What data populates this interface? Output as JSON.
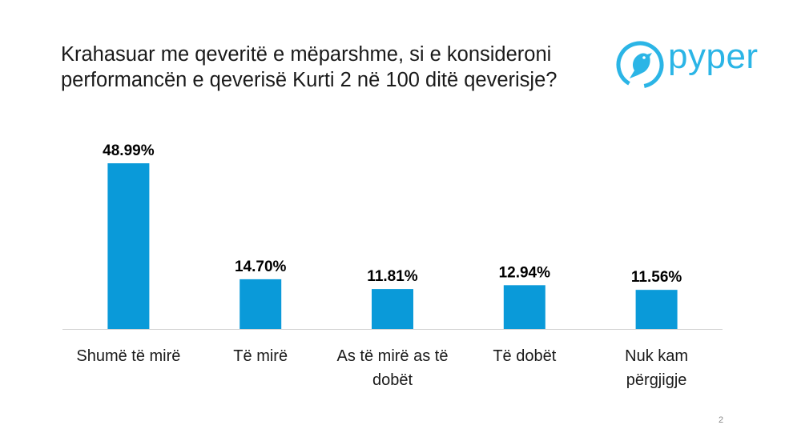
{
  "page": {
    "title_line1": "Krahasuar me qeveritë e mëparshme, si e konsideroni",
    "title_line2": "performancën e qeverisë Kurti 2 në 100 ditë qeverisje?",
    "page_number": "2"
  },
  "logo": {
    "text": "pyper",
    "icon": "bird-logo-icon",
    "color": "#2bb5e6"
  },
  "colors": {
    "bar": "#0a9ad9",
    "axis": "#d0d0d0",
    "label": "#000000"
  },
  "chart_data": {
    "type": "bar",
    "title": "Krahasuar me qeveritë e mëparshme, si e konsideroni performancën e qeverisë Kurti 2 në 100 ditë qeverisje?",
    "categories": [
      [
        "Shumë të mirë"
      ],
      [
        "Të mirë"
      ],
      [
        "As të mirë as të",
        "dobët"
      ],
      [
        "Të dobët"
      ],
      [
        "Nuk kam",
        "përgjigje"
      ]
    ],
    "values": [
      48.99,
      14.7,
      11.81,
      12.94,
      11.56
    ],
    "data_labels": [
      "48.99%",
      "14.70%",
      "11.81%",
      "12.94%",
      "11.56%"
    ],
    "unit": "%",
    "ylim": [
      0,
      50
    ],
    "xlabel": "",
    "ylabel": "",
    "grid": false,
    "legend": "none"
  }
}
